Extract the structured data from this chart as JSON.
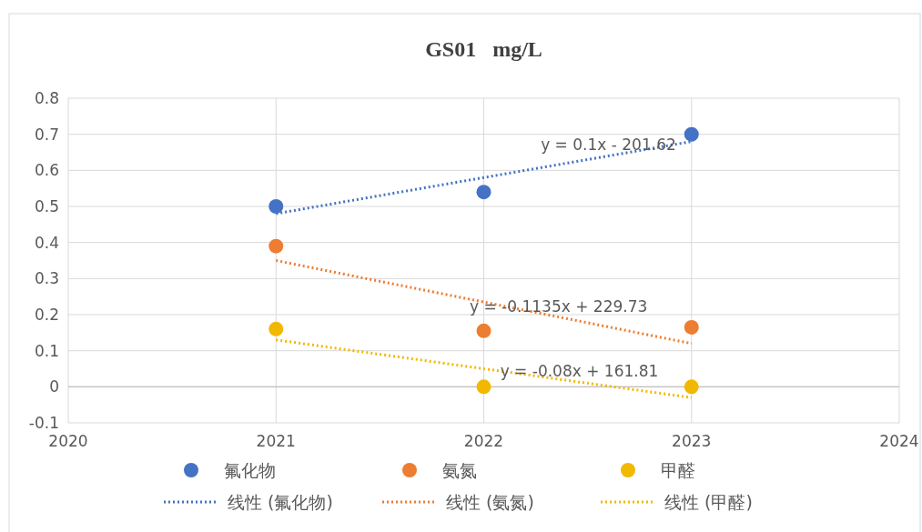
{
  "chart_data": {
    "type": "scatter",
    "title": "GS01   mg/L",
    "xlim": [
      2020,
      2024
    ],
    "xticks": [
      2020,
      2021,
      2022,
      2023,
      2024
    ],
    "ylim": [
      -0.1,
      0.8
    ],
    "yticks": [
      -0.1,
      0,
      0.1,
      0.2,
      0.3,
      0.4,
      0.5,
      0.6,
      0.7,
      0.8
    ],
    "grid": true,
    "legend": "bottom",
    "marker": "circle",
    "series": [
      {
        "name": "氟化物",
        "color": "#4472c4",
        "x": [
          2021,
          2022,
          2023
        ],
        "values": [
          0.5,
          0.54,
          0.7
        ]
      },
      {
        "name": "氨氮",
        "color": "#ed7d31",
        "x": [
          2021,
          2022,
          2023
        ],
        "values": [
          0.39,
          0.155,
          0.165
        ]
      },
      {
        "name": "甲醛",
        "color": "#f2b800",
        "x": [
          2021,
          2022,
          2023
        ],
        "values": [
          0.16,
          0,
          0
        ]
      },
      {
        "name": "线性 (氟化物)",
        "type": "line",
        "line_style": "dotted",
        "marker": "none",
        "color": "#4472c4",
        "x": [
          2021,
          2023
        ],
        "values": [
          0.48,
          0.68
        ]
      },
      {
        "name": "线性 (氨氮)",
        "type": "line",
        "line_style": "dotted",
        "marker": "none",
        "color": "#ed7d31",
        "x": [
          2021,
          2023
        ],
        "values": [
          0.35,
          0.12
        ]
      },
      {
        "name": "线性 (甲醛)",
        "type": "line",
        "line_style": "dotted",
        "marker": "none",
        "color": "#f2b800",
        "x": [
          2021,
          2023
        ],
        "values": [
          0.13,
          -0.03
        ]
      }
    ],
    "annotations": [
      "y = 0.1x - 201.62",
      "y = -0.1135x + 229.73",
      "y = -0.08x + 161.81"
    ]
  }
}
